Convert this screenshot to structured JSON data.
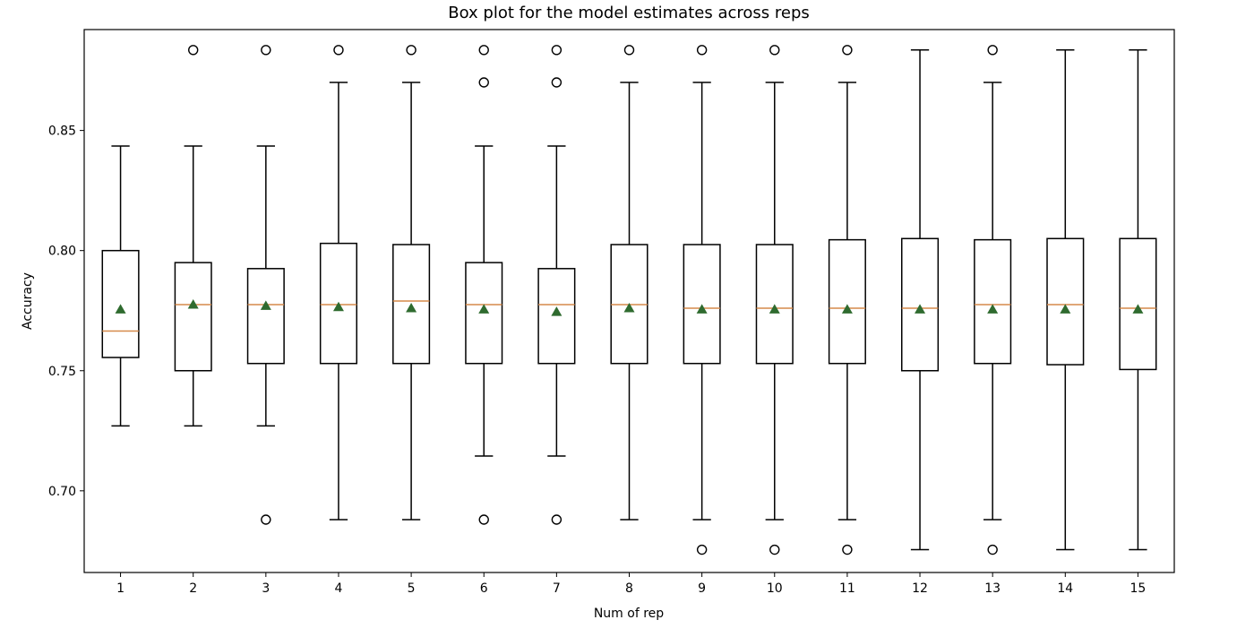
{
  "chart_data": {
    "type": "box",
    "title": "Box plot for the model estimates across reps",
    "xlabel": "Num of rep",
    "ylabel": "Accuracy",
    "categories": [
      "1",
      "2",
      "3",
      "4",
      "5",
      "6",
      "7",
      "8",
      "9",
      "10",
      "11",
      "12",
      "13",
      "14",
      "15"
    ],
    "ylim": [
      0.666,
      0.892
    ],
    "yticks": [
      0.7,
      0.75,
      0.8,
      0.85
    ],
    "ytick_labels": [
      "0.70",
      "0.75",
      "0.80",
      "0.85"
    ],
    "grid": false,
    "show_means": true,
    "colors": {
      "box": "#000000",
      "median": "#d68a4a",
      "mean_marker": "#2f6b2f",
      "outlier": "#000000",
      "background": "#ffffff"
    },
    "boxes": [
      {
        "whisker_low": 0.727,
        "q1": 0.7555,
        "median": 0.7665,
        "q3": 0.8,
        "whisker_high": 0.8435,
        "mean": 0.7755,
        "outliers": []
      },
      {
        "whisker_low": 0.727,
        "q1": 0.75,
        "median": 0.7775,
        "q3": 0.795,
        "whisker_high": 0.8435,
        "mean": 0.7775,
        "outliers": [
          0.8835
        ]
      },
      {
        "whisker_low": 0.727,
        "q1": 0.753,
        "median": 0.7775,
        "q3": 0.7925,
        "whisker_high": 0.8435,
        "mean": 0.777,
        "outliers": [
          0.8835,
          0.688
        ]
      },
      {
        "whisker_low": 0.688,
        "q1": 0.753,
        "median": 0.7775,
        "q3": 0.803,
        "whisker_high": 0.87,
        "mean": 0.7765,
        "outliers": [
          0.8835
        ]
      },
      {
        "whisker_low": 0.688,
        "q1": 0.753,
        "median": 0.779,
        "q3": 0.8025,
        "whisker_high": 0.87,
        "mean": 0.776,
        "outliers": [
          0.8835
        ]
      },
      {
        "whisker_low": 0.7145,
        "q1": 0.753,
        "median": 0.7775,
        "q3": 0.795,
        "whisker_high": 0.8435,
        "mean": 0.7755,
        "outliers": [
          0.8835,
          0.87,
          0.688
        ]
      },
      {
        "whisker_low": 0.7145,
        "q1": 0.753,
        "median": 0.7775,
        "q3": 0.7925,
        "whisker_high": 0.8435,
        "mean": 0.7745,
        "outliers": [
          0.8835,
          0.87,
          0.688
        ]
      },
      {
        "whisker_low": 0.688,
        "q1": 0.753,
        "median": 0.7775,
        "q3": 0.8025,
        "whisker_high": 0.87,
        "mean": 0.776,
        "outliers": [
          0.8835
        ]
      },
      {
        "whisker_low": 0.688,
        "q1": 0.753,
        "median": 0.776,
        "q3": 0.8025,
        "whisker_high": 0.87,
        "mean": 0.7755,
        "outliers": [
          0.8835,
          0.6755
        ]
      },
      {
        "whisker_low": 0.688,
        "q1": 0.753,
        "median": 0.776,
        "q3": 0.8025,
        "whisker_high": 0.87,
        "mean": 0.7755,
        "outliers": [
          0.8835,
          0.6755
        ]
      },
      {
        "whisker_low": 0.688,
        "q1": 0.753,
        "median": 0.776,
        "q3": 0.8045,
        "whisker_high": 0.87,
        "mean": 0.7755,
        "outliers": [
          0.8835,
          0.6755
        ]
      },
      {
        "whisker_low": 0.6755,
        "q1": 0.75,
        "median": 0.776,
        "q3": 0.805,
        "whisker_high": 0.8835,
        "mean": 0.7755,
        "outliers": []
      },
      {
        "whisker_low": 0.688,
        "q1": 0.753,
        "median": 0.7775,
        "q3": 0.8045,
        "whisker_high": 0.87,
        "mean": 0.7755,
        "outliers": [
          0.8835,
          0.6755
        ]
      },
      {
        "whisker_low": 0.6755,
        "q1": 0.7525,
        "median": 0.7775,
        "q3": 0.805,
        "whisker_high": 0.8835,
        "mean": 0.7755,
        "outliers": []
      },
      {
        "whisker_low": 0.6755,
        "q1": 0.7505,
        "median": 0.776,
        "q3": 0.805,
        "whisker_high": 0.8835,
        "mean": 0.7755,
        "outliers": []
      }
    ]
  }
}
